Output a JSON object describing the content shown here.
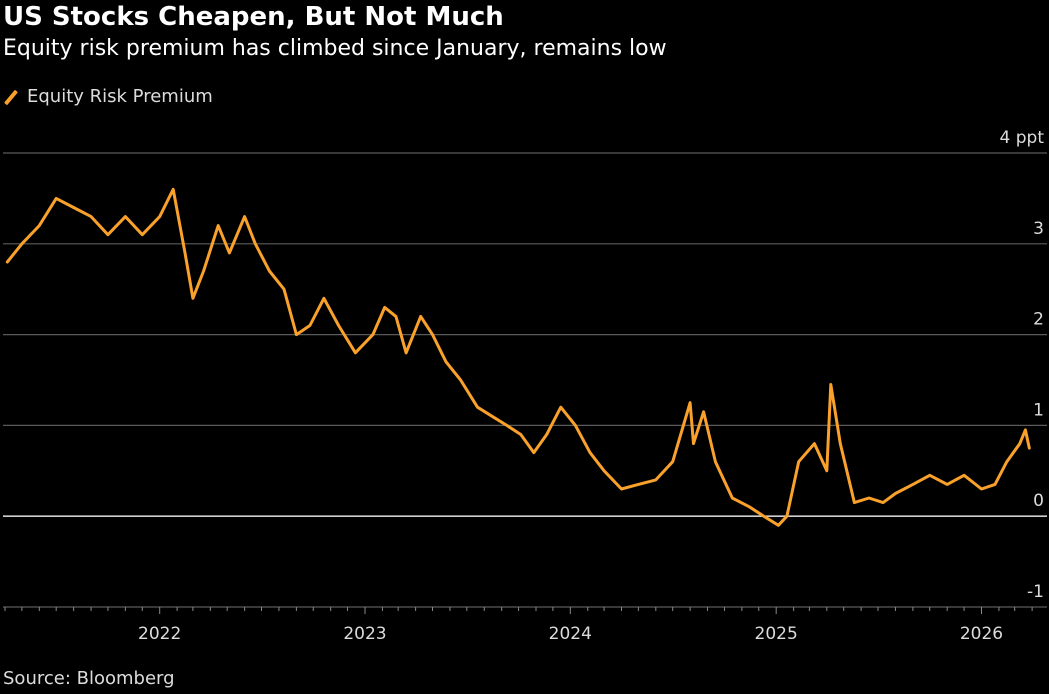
{
  "header": {
    "title": "US Stocks Cheapen, But Not Much",
    "subtitle": "Equity risk premium has climbed since January, remains low"
  },
  "legend": {
    "label": "Equity Risk Premium"
  },
  "footer": {
    "source": "Source: Bloomberg"
  },
  "colors": {
    "background": "#000000",
    "series": "#f9a12b",
    "grid": "#5a5a5a",
    "zero_line": "#cfcfcf",
    "text": "#dcdcdc"
  },
  "chart_data": {
    "type": "line",
    "title": "US Stocks Cheapen, But Not Much",
    "subtitle": "Equity risk premium has climbed since January, remains low",
    "ylabel": "",
    "y_unit": "ppt",
    "ylim": [
      -1,
      4
    ],
    "yticks": [
      -1,
      0,
      1,
      2,
      3,
      4
    ],
    "ytick_labels": [
      "-1",
      "0",
      "1",
      "2",
      "3",
      "4 ppt"
    ],
    "xlim": [
      "2021-04-01",
      "2026-05-01"
    ],
    "xticks": [
      "2022-01-01",
      "2023-01-01",
      "2024-01-01",
      "2025-01-01",
      "2026-01-01"
    ],
    "xtick_labels": [
      "2022",
      "2023",
      "2024",
      "2025",
      "2026"
    ],
    "grid": true,
    "legend_position": "top-left",
    "series": [
      {
        "name": "Equity Risk Premium",
        "color": "#f9a12b",
        "x": [
          "2021-04-05",
          "2021-05-01",
          "2021-06-01",
          "2021-07-01",
          "2021-08-01",
          "2021-09-01",
          "2021-10-01",
          "2021-11-01",
          "2021-12-01",
          "2022-01-01",
          "2022-01-25",
          "2022-02-15",
          "2022-03-01",
          "2022-03-20",
          "2022-04-15",
          "2022-05-05",
          "2022-06-01",
          "2022-06-20",
          "2022-07-15",
          "2022-08-10",
          "2022-09-01",
          "2022-09-25",
          "2022-10-20",
          "2022-11-15",
          "2022-12-15",
          "2023-01-15",
          "2023-02-05",
          "2023-02-25",
          "2023-03-15",
          "2023-04-10",
          "2023-05-01",
          "2023-05-25",
          "2023-06-20",
          "2023-07-20",
          "2023-08-15",
          "2023-09-10",
          "2023-10-05",
          "2023-10-28",
          "2023-11-20",
          "2023-12-15",
          "2024-01-10",
          "2024-02-05",
          "2024-03-01",
          "2024-04-01",
          "2024-05-01",
          "2024-06-01",
          "2024-07-01",
          "2024-08-01",
          "2024-08-07",
          "2024-08-25",
          "2024-09-15",
          "2024-10-15",
          "2024-11-15",
          "2024-12-10",
          "2025-01-05",
          "2025-01-20",
          "2025-02-10",
          "2025-03-10",
          "2025-04-01",
          "2025-04-08",
          "2025-04-25",
          "2025-05-20",
          "2025-06-15",
          "2025-07-10",
          "2025-08-01",
          "2025-09-01",
          "2025-10-01",
          "2025-11-01",
          "2025-12-01",
          "2026-01-01",
          "2026-01-25",
          "2026-02-15",
          "2026-03-10",
          "2026-03-20",
          "2026-03-27"
        ],
        "values": [
          2.8,
          3.0,
          3.2,
          3.5,
          3.4,
          3.3,
          3.1,
          3.3,
          3.1,
          3.3,
          3.6,
          2.9,
          2.4,
          2.7,
          3.2,
          2.9,
          3.3,
          3.0,
          2.7,
          2.5,
          2.0,
          2.1,
          2.4,
          2.1,
          1.8,
          2.0,
          2.3,
          2.2,
          1.8,
          2.2,
          2.0,
          1.7,
          1.5,
          1.2,
          1.1,
          1.0,
          0.9,
          0.7,
          0.9,
          1.2,
          1.0,
          0.7,
          0.5,
          0.3,
          0.35,
          0.4,
          0.6,
          1.25,
          0.8,
          1.15,
          0.6,
          0.2,
          0.1,
          0.0,
          -0.1,
          0.0,
          0.6,
          0.8,
          0.5,
          1.45,
          0.8,
          0.15,
          0.2,
          0.15,
          0.25,
          0.35,
          0.45,
          0.35,
          0.45,
          0.3,
          0.35,
          0.6,
          0.8,
          0.95,
          0.75
        ]
      }
    ]
  }
}
